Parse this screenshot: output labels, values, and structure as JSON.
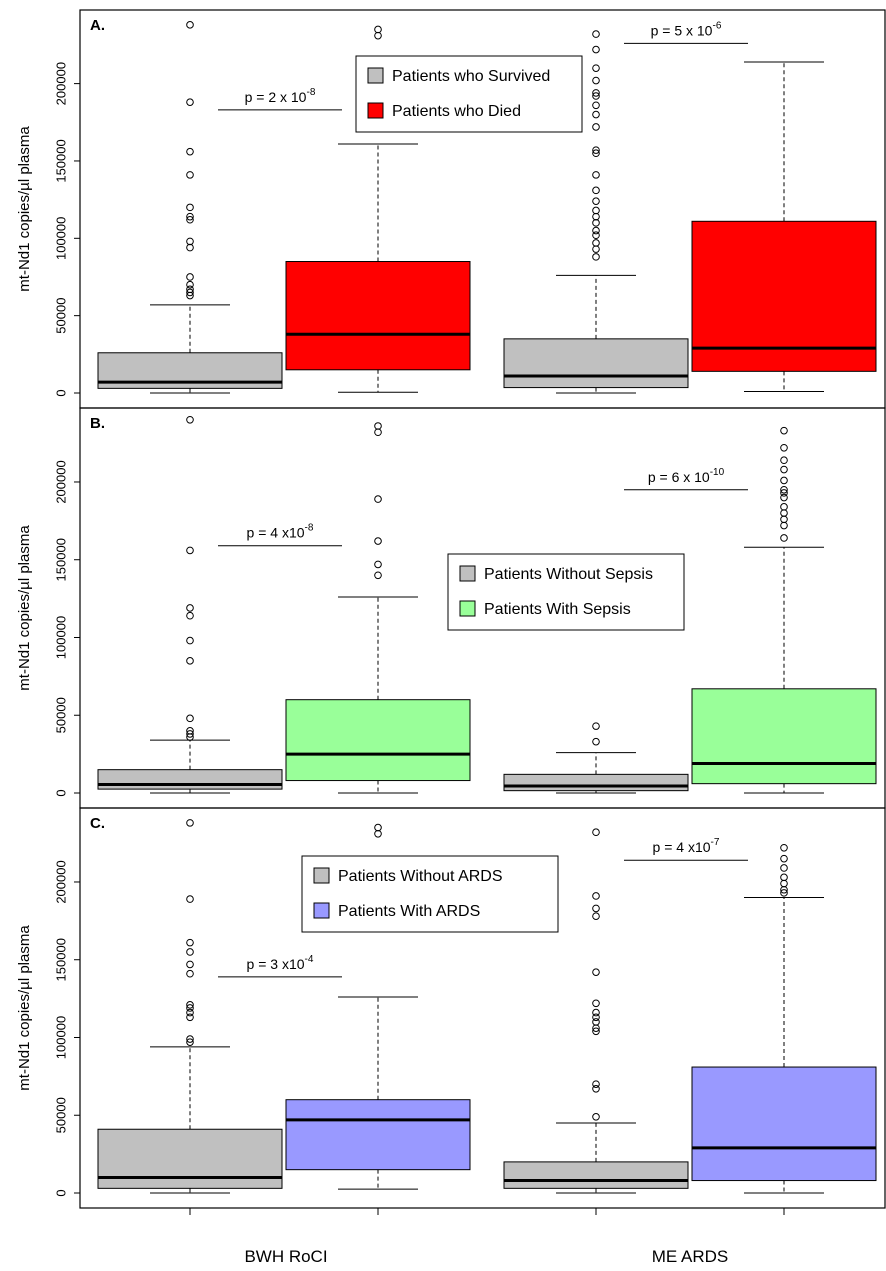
{
  "shared_x": {
    "groups": [
      "BWH RoCI",
      "ME ARDS"
    ]
  },
  "chart_data": [
    {
      "type": "boxplot",
      "panel_label": "A.",
      "ylabel": "mt-Nd1 copies/µl plasma",
      "ylim": [
        0,
        245000
      ],
      "yticks": [
        0,
        50000,
        100000,
        150000,
        200000
      ],
      "yticklabels": [
        "0",
        "50000",
        "100000",
        "150000",
        "200000"
      ],
      "legend": {
        "position": "top-center",
        "entries": [
          {
            "label": "Patients who Survived",
            "color": "#c0c0c0"
          },
          {
            "label": "Patients who Died",
            "color": "#ff0000"
          }
        ]
      },
      "boxes": [
        {
          "group": "BWH RoCI",
          "series": "Patients who Survived",
          "color": "#c0c0c0",
          "min": 0,
          "q1": 3000,
          "median": 7000,
          "q3": 26000,
          "max": 57000,
          "outliers": [
            63000,
            65000,
            67000,
            70000,
            75000,
            94000,
            98000,
            112000,
            114000,
            120000,
            141000,
            156000,
            188000,
            238000
          ]
        },
        {
          "group": "BWH RoCI",
          "series": "Patients who Died",
          "color": "#ff0000",
          "min": 500,
          "q1": 15000,
          "median": 38000,
          "q3": 85000,
          "max": 161000,
          "outliers": [
            231000,
            235000
          ]
        },
        {
          "group": "ME ARDS",
          "series": "Patients who Survived",
          "color": "#c0c0c0",
          "min": 0,
          "q1": 3500,
          "median": 11000,
          "q3": 35000,
          "max": 76000,
          "outliers": [
            88000,
            93000,
            97000,
            102000,
            105000,
            110000,
            114000,
            118000,
            124000,
            131000,
            141000,
            155000,
            157000,
            172000,
            180000,
            186000,
            192000,
            194000,
            202000,
            210000,
            222000,
            232000
          ]
        },
        {
          "group": "ME ARDS",
          "series": "Patients who Died",
          "color": "#ff0000",
          "min": 1000,
          "q1": 14000,
          "median": 29000,
          "q3": 111000,
          "max": 214000,
          "outliers": []
        }
      ],
      "annotations": [
        {
          "group": "BWH RoCI",
          "text": "p = 2 x 10",
          "exponent": "-8",
          "y": 183000
        },
        {
          "group": "ME ARDS",
          "text": "p = 5 x 10",
          "exponent": "-6",
          "y": 226000
        }
      ]
    },
    {
      "type": "boxplot",
      "panel_label": "B.",
      "ylabel": "mt-Nd1 copies/µl plasma",
      "ylim": [
        0,
        245000
      ],
      "yticks": [
        0,
        50000,
        100000,
        150000,
        200000
      ],
      "yticklabels": [
        "0",
        "50000",
        "100000",
        "150000",
        "200000"
      ],
      "legend": {
        "position": "center",
        "entries": [
          {
            "label": "Patients Without Sepsis",
            "color": "#c0c0c0"
          },
          {
            "label": "Patients With Sepsis",
            "color": "#99ff99"
          }
        ]
      },
      "boxes": [
        {
          "group": "BWH RoCI",
          "series": "Patients Without Sepsis",
          "color": "#c0c0c0",
          "min": 0,
          "q1": 2500,
          "median": 5500,
          "q3": 15000,
          "max": 34000,
          "outliers": [
            36000,
            38000,
            40000,
            48000,
            85000,
            98000,
            114000,
            119000,
            156000,
            240000
          ]
        },
        {
          "group": "BWH RoCI",
          "series": "Patients With Sepsis",
          "color": "#99ff99",
          "min": 0,
          "q1": 8000,
          "median": 25000,
          "q3": 60000,
          "max": 126000,
          "outliers": [
            140000,
            147000,
            162000,
            189000,
            232000,
            236000
          ]
        },
        {
          "group": "ME ARDS",
          "series": "Patients Without Sepsis",
          "color": "#c0c0c0",
          "min": 0,
          "q1": 1500,
          "median": 4500,
          "q3": 12000,
          "max": 26000,
          "outliers": [
            33000,
            43000
          ]
        },
        {
          "group": "ME ARDS",
          "series": "Patients With Sepsis",
          "color": "#99ff99",
          "min": 0,
          "q1": 6000,
          "median": 19000,
          "q3": 67000,
          "max": 158000,
          "outliers": [
            164000,
            172000,
            176000,
            180000,
            184000,
            190000,
            193000,
            195000,
            201000,
            208000,
            214000,
            222000,
            233000
          ]
        }
      ],
      "annotations": [
        {
          "group": "BWH RoCI",
          "text": "p = 4 x10",
          "exponent": "-8",
          "y": 159000
        },
        {
          "group": "ME ARDS",
          "text": "p = 6 x 10",
          "exponent": "-10",
          "y": 195000
        }
      ]
    },
    {
      "type": "boxplot",
      "panel_label": "C.",
      "ylabel": "mt-Nd1 copies/µl plasma",
      "ylim": [
        0,
        245000
      ],
      "yticks": [
        0,
        50000,
        100000,
        150000,
        200000
      ],
      "yticklabels": [
        "0",
        "50000",
        "100000",
        "150000",
        "200000"
      ],
      "legend": {
        "position": "top-center",
        "entries": [
          {
            "label": "Patients Without ARDS",
            "color": "#c0c0c0"
          },
          {
            "label": "Patients With ARDS",
            "color": "#9999ff"
          }
        ]
      },
      "boxes": [
        {
          "group": "BWH RoCI",
          "series": "Patients Without ARDS",
          "color": "#c0c0c0",
          "min": 0,
          "q1": 3000,
          "median": 10000,
          "q3": 41000,
          "max": 94000,
          "outliers": [
            97000,
            99000,
            113000,
            116000,
            119000,
            121000,
            141000,
            147000,
            155000,
            161000,
            189000,
            238000
          ]
        },
        {
          "group": "BWH RoCI",
          "series": "Patients With ARDS",
          "color": "#9999ff",
          "min": 2500,
          "q1": 15000,
          "median": 47000,
          "q3": 60000,
          "max": 126000,
          "outliers": [
            231000,
            235000
          ]
        },
        {
          "group": "ME ARDS",
          "series": "Patients Without ARDS",
          "color": "#c0c0c0",
          "min": 0,
          "q1": 3000,
          "median": 8000,
          "q3": 20000,
          "max": 45000,
          "outliers": [
            49000,
            67000,
            70000,
            104000,
            106000,
            110000,
            113000,
            116000,
            122000,
            142000,
            178000,
            183000,
            191000,
            232000
          ]
        },
        {
          "group": "ME ARDS",
          "series": "Patients With ARDS",
          "color": "#9999ff",
          "min": 0,
          "q1": 8000,
          "median": 29000,
          "q3": 81000,
          "max": 190000,
          "outliers": [
            193000,
            195000,
            199000,
            203000,
            209000,
            215000,
            222000
          ]
        }
      ],
      "annotations": [
        {
          "group": "BWH RoCI",
          "text": "p = 3 x10",
          "exponent": "-4",
          "y": 139000
        },
        {
          "group": "ME ARDS",
          "text": "p = 4 x10",
          "exponent": "-7",
          "y": 214000
        }
      ]
    }
  ]
}
